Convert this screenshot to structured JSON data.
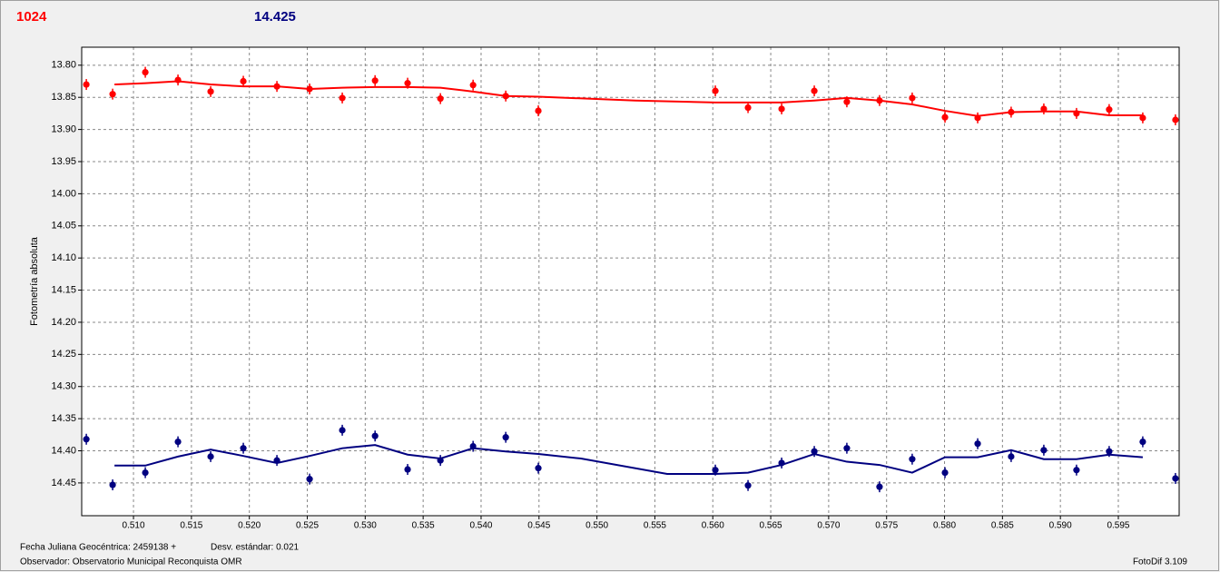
{
  "chart_data": {
    "type": "scatter",
    "y_label": "Fotometría absoluta",
    "annotations": [
      "Fecha Juliana Geocéntrica: 2459138 +",
      "Desv. estándar: 0.021",
      "Observador: Observatorio Municipal Reconquista OMR",
      "FotoDif 3.109"
    ],
    "xlim": [
      0.50553,
      0.60025
    ],
    "ylim": [
      14.501,
      13.772
    ],
    "grid": true,
    "xticks": [
      {
        "value": 0.51,
        "label": "0.510"
      },
      {
        "value": 0.515,
        "label": "0.515"
      },
      {
        "value": 0.52,
        "label": "0.520"
      },
      {
        "value": 0.525,
        "label": "0.525"
      },
      {
        "value": 0.53,
        "label": "0.530"
      },
      {
        "value": 0.535,
        "label": "0.535"
      },
      {
        "value": 0.54,
        "label": "0.540"
      },
      {
        "value": 0.545,
        "label": "0.545"
      },
      {
        "value": 0.55,
        "label": "0.550"
      },
      {
        "value": 0.555,
        "label": "0.555"
      },
      {
        "value": 0.56,
        "label": "0.560"
      },
      {
        "value": 0.565,
        "label": "0.565"
      },
      {
        "value": 0.57,
        "label": "0.570"
      },
      {
        "value": 0.575,
        "label": "0.575"
      },
      {
        "value": 0.58,
        "label": "0.580"
      },
      {
        "value": 0.585,
        "label": "0.585"
      },
      {
        "value": 0.59,
        "label": "0.590"
      },
      {
        "value": 0.595,
        "label": "0.595"
      }
    ],
    "yticks": [
      {
        "value": 13.8,
        "label": "13.80"
      },
      13.85,
      {
        "value": 13.9,
        "label": "13.90"
      },
      13.95,
      {
        "value": 14,
        "label": "14.00"
      },
      14.05,
      {
        "value": 14.1,
        "label": "14.10"
      },
      14.15,
      {
        "value": 14.2,
        "label": "14.20"
      },
      14.25,
      {
        "value": 14.3,
        "label": "14.30"
      },
      14.35,
      {
        "value": 14.4,
        "label": "14.40"
      },
      14.45
    ],
    "x": [
      0.50593,
      0.5082,
      0.51102,
      0.51384,
      0.51666,
      0.51948,
      0.52238,
      0.5252,
      0.52802,
      0.53085,
      0.53366,
      0.53649,
      0.53931,
      0.54213,
      0.54494,
      0.56022,
      0.56304,
      0.56594,
      0.56876,
      0.57157,
      0.57439,
      0.57721,
      0.58004,
      0.58286,
      0.58575,
      0.58857,
      0.59139,
      0.59421,
      0.59711,
      0.59993
    ],
    "series": [
      {
        "name": "1024",
        "color": "#ff0000",
        "values": [
          13.83,
          13.845,
          13.811,
          13.823,
          13.841,
          13.825,
          13.833,
          13.837,
          13.851,
          13.824,
          13.828,
          13.852,
          13.831,
          13.848,
          13.871,
          13.84,
          13.866,
          13.868,
          13.84,
          13.857,
          13.855,
          13.851,
          13.881,
          13.882,
          13.873,
          13.868,
          13.875,
          13.869,
          13.882,
          13.885
        ],
        "fit_x": [
          0.50836,
          0.51102,
          0.51384,
          0.51666,
          0.51948,
          0.52238,
          0.5252,
          0.52802,
          0.53085,
          0.53366,
          0.53649,
          0.53931,
          0.54213,
          0.54494,
          0.55332,
          0.56022,
          0.56594,
          0.56876,
          0.57157,
          0.57439,
          0.57721,
          0.58004,
          0.58286,
          0.58575,
          0.58857,
          0.59139,
          0.59421,
          0.59711
        ],
        "fit_values": [
          13.83,
          13.828,
          13.825,
          13.83,
          13.833,
          13.833,
          13.837,
          13.835,
          13.834,
          13.834,
          13.835,
          13.841,
          13.848,
          13.849,
          13.855,
          13.858,
          13.858,
          13.855,
          13.851,
          13.855,
          13.861,
          13.871,
          13.879,
          13.873,
          13.872,
          13.872,
          13.878,
          13.878
        ]
      },
      {
        "name": "14.425",
        "color": "#000080",
        "values": [
          14.382,
          14.453,
          14.434,
          14.386,
          14.409,
          14.396,
          14.415,
          14.444,
          14.368,
          14.377,
          14.429,
          14.415,
          14.393,
          14.379,
          14.427,
          14.43,
          14.454,
          14.419,
          14.401,
          14.396,
          14.456,
          14.413,
          14.434,
          14.389,
          14.409,
          14.399,
          14.43,
          14.401,
          14.386,
          14.443
        ],
        "fit_x": [
          0.50836,
          0.51102,
          0.51384,
          0.51666,
          0.51948,
          0.52238,
          0.5252,
          0.52802,
          0.53085,
          0.53366,
          0.53649,
          0.53931,
          0.54213,
          0.54494,
          0.54862,
          0.55606,
          0.56022,
          0.56304,
          0.56594,
          0.56876,
          0.57157,
          0.57439,
          0.57721,
          0.58004,
          0.58286,
          0.58575,
          0.58857,
          0.59139,
          0.59421,
          0.59711
        ],
        "fit_values": [
          14.423,
          14.423,
          14.409,
          14.398,
          14.408,
          14.419,
          14.408,
          14.396,
          14.391,
          14.406,
          14.412,
          14.396,
          14.401,
          14.405,
          14.412,
          14.436,
          14.436,
          14.434,
          14.422,
          14.405,
          14.417,
          14.422,
          14.434,
          14.41,
          14.41,
          14.399,
          14.413,
          14.413,
          14.406,
          14.41
        ]
      }
    ]
  }
}
